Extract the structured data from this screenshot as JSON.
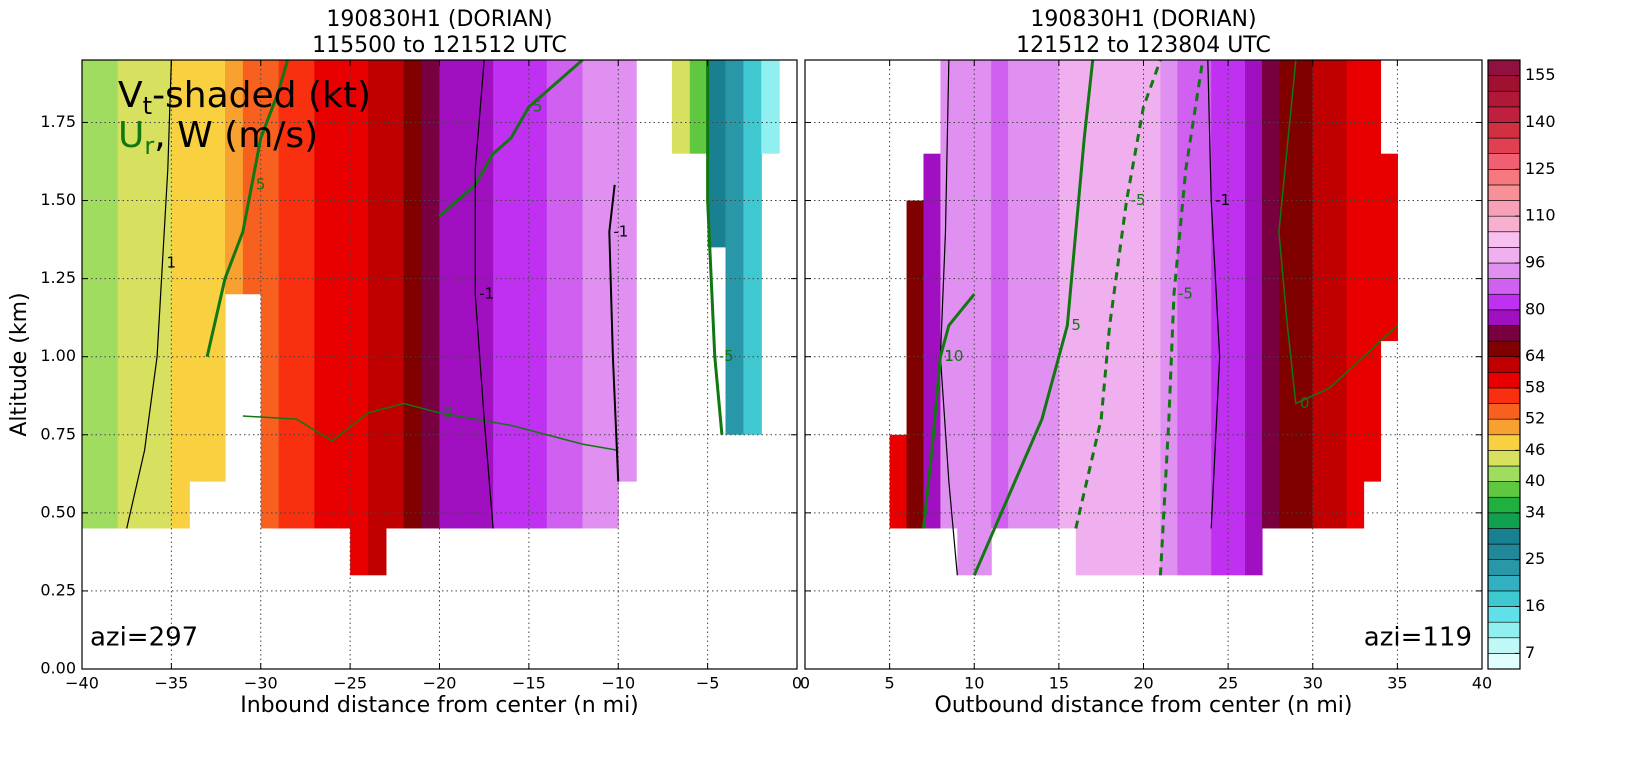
{
  "chart_data": [
    {
      "type": "contour",
      "title": [
        "190830H1 (DORIAN)",
        "115500 to 121512 UTC"
      ],
      "xlabel": "Inbound distance from center (n mi)",
      "ylabel": "Altitude (km)",
      "legend": {
        "line1": [
          "V",
          "t",
          "-shaded (kt)"
        ],
        "line2": [
          "U",
          "r",
          ", W (m/s)"
        ]
      },
      "annotation": "azi=297",
      "xlim": [
        -40,
        0
      ],
      "ylim": [
        0,
        1.95
      ],
      "grid": true,
      "xticks": [
        {
          "value": -40,
          "label": "−40"
        },
        {
          "value": -35,
          "label": "−35"
        },
        {
          "value": -30,
          "label": "−30"
        },
        {
          "value": -25,
          "label": "−25"
        },
        {
          "value": -20,
          "label": "−20"
        },
        {
          "value": -15,
          "label": "−15"
        },
        {
          "value": -10,
          "label": "−10"
        },
        {
          "value": -5,
          "label": "−5"
        },
        0
      ],
      "yticks": [
        {
          "value": 0,
          "label": "0.00"
        },
        {
          "value": 0.25,
          "label": "0.25"
        },
        {
          "value": 0.5,
          "label": "0.50"
        },
        {
          "value": 0.75,
          "label": "0.75"
        },
        {
          "value": 1,
          "label": "1.00"
        },
        {
          "value": 1.25,
          "label": "1.25"
        },
        {
          "value": 1.5,
          "label": "1.50"
        },
        {
          "value": 1.75,
          "label": "1.75"
        }
      ],
      "x": [
        -40,
        -39,
        -38,
        -37,
        -36,
        -35,
        -34,
        -33,
        -32,
        -31,
        -30,
        -29,
        -28,
        -27,
        -26,
        -25,
        -24,
        -23,
        -22,
        -21,
        -20,
        -19,
        -18,
        -17,
        -16,
        -15,
        -14,
        -13,
        -12,
        -11,
        -10,
        -9,
        -8,
        -7,
        -6,
        -5,
        -4,
        -3,
        -2
      ],
      "values": [
        41,
        42,
        43,
        44,
        45,
        46,
        47,
        48,
        50,
        52,
        54,
        56,
        57,
        58,
        59,
        60,
        61,
        63,
        66,
        72,
        76,
        78,
        79,
        80,
        82,
        84,
        86,
        88,
        90,
        92,
        94,
        null,
        null,
        44,
        38,
        30,
        24,
        18,
        10
      ],
      "bottoms": [
        0.45,
        0.45,
        0.45,
        0.45,
        0.45,
        0.45,
        0.6,
        0.6,
        1.2,
        1.2,
        0.45,
        0.45,
        0.45,
        0.45,
        0.45,
        0.3,
        0.3,
        0.45,
        0.45,
        0.45,
        0.45,
        0.45,
        0.45,
        0.45,
        0.45,
        0.45,
        0.45,
        0.45,
        0.45,
        0.45,
        0.6,
        null,
        null,
        1.65,
        1.65,
        1.35,
        0.75,
        0.75,
        1.65
      ],
      "tops": [
        1.95,
        1.95,
        1.95,
        1.95,
        1.95,
        1.95,
        1.95,
        1.95,
        1.95,
        1.95,
        1.95,
        1.95,
        1.95,
        1.95,
        1.95,
        1.95,
        1.95,
        1.95,
        1.95,
        1.95,
        1.95,
        1.95,
        1.95,
        1.95,
        1.95,
        1.95,
        1.95,
        1.95,
        1.95,
        1.95,
        1.95,
        null,
        null,
        1.95,
        1.95,
        1.95,
        1.95,
        1.95,
        1.95
      ],
      "contours": [
        {
          "label": "1",
          "color": "#000000",
          "width": 1.2,
          "dash": false,
          "x": [
            -37.5,
            -36.5,
            -35.8,
            -35.5,
            -35.2,
            -35
          ],
          "y": [
            0.45,
            0.7,
            1.0,
            1.3,
            1.6,
            1.95
          ]
        },
        {
          "label": "5",
          "color": "#117711",
          "width": 3,
          "dash": false,
          "x": [
            -33,
            -32,
            -31,
            -30.5,
            -30,
            -29,
            -28.5
          ],
          "y": [
            1.0,
            1.25,
            1.4,
            1.55,
            1.7,
            1.85,
            1.95
          ]
        },
        {
          "label": "0",
          "color": "#117711",
          "width": 1.5,
          "dash": false,
          "x": [
            -31,
            -28,
            -26,
            -24,
            -22,
            -20,
            -18,
            -16,
            -14,
            -12,
            -10
          ],
          "y": [
            0.81,
            0.8,
            0.73,
            0.82,
            0.85,
            0.82,
            0.8,
            0.78,
            0.75,
            0.72,
            0.7
          ]
        },
        {
          "label": "5",
          "color": "#117711",
          "width": 3,
          "dash": false,
          "x": [
            -20,
            -18,
            -17,
            -16,
            -15,
            -14,
            -13,
            -12
          ],
          "y": [
            1.45,
            1.55,
            1.65,
            1.7,
            1.8,
            1.85,
            1.9,
            1.95
          ]
        },
        {
          "label": "-1",
          "color": "#000000",
          "width": 1.2,
          "dash": false,
          "x": [
            -17,
            -17.5,
            -18,
            -18,
            -17.5
          ],
          "y": [
            0.45,
            0.8,
            1.2,
            1.6,
            1.95
          ]
        },
        {
          "label": "-1",
          "color": "#000000",
          "width": 2,
          "dash": false,
          "x": [
            -10,
            -10.3,
            -10.5,
            -10.2
          ],
          "y": [
            0.6,
            1.0,
            1.4,
            1.55
          ]
        },
        {
          "label": "-5",
          "color": "#117711",
          "width": 3,
          "dash": false,
          "x": [
            -5,
            -5,
            -4.6,
            -4.2
          ],
          "y": [
            1.95,
            1.5,
            1.0,
            0.75
          ]
        }
      ]
    },
    {
      "type": "contour",
      "title": [
        "190830H1 (DORIAN)",
        "121512 to 123804 UTC"
      ],
      "xlabel": "Outbound distance from center (n mi)",
      "annotation": "azi=119",
      "xlim": [
        0,
        40
      ],
      "ylim": [
        0,
        1.95
      ],
      "grid": true,
      "xticks": [
        0,
        5,
        10,
        15,
        20,
        25,
        30,
        35,
        40
      ],
      "yticks": [
        0,
        0.25,
        0.5,
        0.75,
        1,
        1.25,
        1.5,
        1.75
      ],
      "x": [
        5,
        6,
        7,
        8,
        9,
        10,
        11,
        12,
        13,
        14,
        15,
        16,
        17,
        18,
        19,
        20,
        21,
        22,
        23,
        24,
        25,
        26,
        27,
        28,
        29,
        30,
        31,
        32,
        33,
        34
      ],
      "values": [
        60,
        64,
        75,
        90,
        95,
        92,
        88,
        90,
        92,
        95,
        97,
        98,
        100,
        100,
        98,
        96,
        92,
        88,
        86,
        84,
        80,
        76,
        72,
        68,
        64,
        62,
        62,
        60,
        60,
        58
      ],
      "bottoms": [
        0.45,
        0.45,
        0.45,
        0.45,
        0.3,
        0.3,
        0.45,
        0.45,
        0.45,
        0.45,
        0.45,
        0.3,
        0.3,
        0.3,
        0.3,
        0.3,
        0.3,
        0.3,
        0.3,
        0.3,
        0.3,
        0.3,
        0.45,
        0.45,
        0.45,
        0.45,
        0.45,
        0.45,
        0.6,
        1.05
      ],
      "tops": [
        0.75,
        1.5,
        1.65,
        1.95,
        1.95,
        1.95,
        1.95,
        1.95,
        1.95,
        1.95,
        1.95,
        1.95,
        1.95,
        1.95,
        1.95,
        1.95,
        1.95,
        1.95,
        1.95,
        1.95,
        1.95,
        1.95,
        1.95,
        1.95,
        1.95,
        1.95,
        1.95,
        1.95,
        1.95,
        1.65
      ],
      "contours": [
        {
          "label": "1",
          "color": "#000000",
          "width": 1.2,
          "dash": false,
          "x": [
            9,
            8.5,
            8,
            8.3,
            8.5
          ],
          "y": [
            0.3,
            0.6,
            1.0,
            1.4,
            1.95
          ]
        },
        {
          "label": "10",
          "color": "#117711",
          "width": 3,
          "dash": false,
          "x": [
            7,
            7.5,
            8,
            8.5,
            10
          ],
          "y": [
            0.45,
            0.7,
            1.0,
            1.1,
            1.2
          ]
        },
        {
          "label": "5",
          "color": "#117711",
          "width": 3,
          "dash": false,
          "x": [
            10,
            12,
            14,
            15.5,
            16,
            16.5,
            17
          ],
          "y": [
            0.3,
            0.55,
            0.8,
            1.1,
            1.4,
            1.7,
            1.95
          ]
        },
        {
          "label": "-5",
          "color": "#117711",
          "width": 3,
          "dash": true,
          "x": [
            16,
            17.5,
            18,
            19,
            20,
            21
          ],
          "y": [
            0.45,
            0.8,
            1.1,
            1.5,
            1.8,
            1.95
          ]
        },
        {
          "label": "-5",
          "color": "#117711",
          "width": 3,
          "dash": true,
          "x": [
            21,
            21.5,
            21.8,
            22.5,
            23.5
          ],
          "y": [
            0.3,
            0.8,
            1.2,
            1.6,
            1.95
          ]
        },
        {
          "label": "-1",
          "color": "#000000",
          "width": 1.2,
          "dash": false,
          "x": [
            24,
            24.5,
            24,
            23.8
          ],
          "y": [
            0.45,
            1.0,
            1.5,
            1.95
          ]
        },
        {
          "label": "0",
          "color": "#117711",
          "width": 1.5,
          "dash": false,
          "x": [
            35,
            33,
            31,
            29,
            28.5,
            28,
            29
          ],
          "y": [
            1.1,
            1.0,
            0.9,
            0.85,
            1.1,
            1.4,
            1.95
          ]
        }
      ]
    },
    {
      "type": "colorbar",
      "levels": [
        4,
        7,
        10,
        13,
        16,
        19,
        22,
        25,
        28,
        31,
        34,
        37,
        40,
        43,
        46,
        49,
        52,
        55,
        58,
        61,
        64,
        69,
        74,
        80,
        85,
        90,
        96,
        101,
        105,
        110,
        115,
        120,
        125,
        130,
        135,
        140,
        145,
        150,
        155,
        160
      ],
      "colors": [
        "#e0ffff",
        "#c0f8f8",
        "#90f0f0",
        "#60e0e8",
        "#40c8d0",
        "#30b0c0",
        "#2898a8",
        "#208898",
        "#188090",
        "#10a050",
        "#20b040",
        "#60c840",
        "#a0dc60",
        "#d8e060",
        "#f8d040",
        "#f8a030",
        "#f86020",
        "#f83010",
        "#e80000",
        "#c00000",
        "#800000",
        "#780040",
        "#a010c0",
        "#c030f0",
        "#d060f0",
        "#e090f0",
        "#f0b0f0",
        "#f8c0f0",
        "#f8b0d0",
        "#f8a0b8",
        "#f89098",
        "#f87880",
        "#f06070",
        "#e04050",
        "#d03040",
        "#c02040",
        "#b01838",
        "#a01030",
        "#901040"
      ],
      "ticks": [
        7,
        16,
        25,
        34,
        40,
        46,
        52,
        58,
        64,
        80,
        96,
        110,
        125,
        140,
        155
      ]
    }
  ]
}
